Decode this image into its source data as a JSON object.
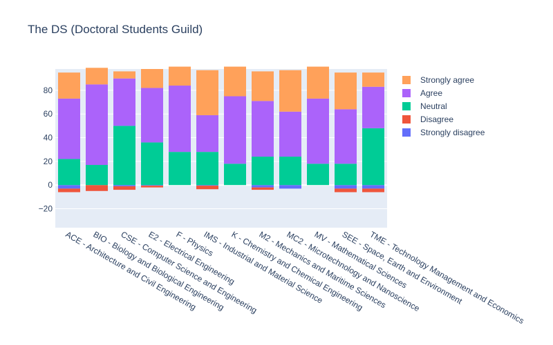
{
  "chart_data": {
    "type": "bar",
    "barmode": "relative",
    "title": "The DS (Doctoral Students Guild)",
    "categories": [
      "ACE - Architecture and Civil Engineering",
      "BIO - Biology and Biological Engineering",
      "CSE - Computer Science and Engineering",
      "E2 - Electrical Engineering",
      "F - Physics",
      "IMS - Industrial and Material Science",
      "K - Chemistry and Chemical Engineering",
      "M2 - Mechanics and Maritime Sciences",
      "MC2 - Microtechnology and Nanoscience",
      "MV - Mathematical Sciences",
      "SEE - Space, Earth and Environment",
      "TME - Technology Management and Economics"
    ],
    "series": [
      {
        "name": "Strongly disagree",
        "color": "#636efa",
        "values": [
          -3,
          0,
          -1,
          -0.5,
          0,
          -0.5,
          0,
          -2,
          -3,
          0,
          -3,
          -3
        ]
      },
      {
        "name": "Disagree",
        "color": "#ef553b",
        "values": [
          -3,
          -5,
          -3,
          -1.5,
          0,
          -3,
          0,
          -2,
          0,
          0,
          -3,
          -3
        ]
      },
      {
        "name": "Neutral",
        "color": "#00cc96",
        "values": [
          22,
          17,
          50,
          36,
          28,
          28,
          18,
          24,
          24,
          18,
          18,
          48
        ]
      },
      {
        "name": "Agree",
        "color": "#ab63fa",
        "values": [
          51,
          68,
          40,
          46,
          56,
          31,
          57,
          47,
          38,
          55,
          46,
          35
        ]
      },
      {
        "name": "Strongly agree",
        "color": "#ffa15a",
        "values": [
          22,
          14,
          6,
          16,
          16,
          38,
          25,
          25,
          35,
          27,
          31,
          12
        ]
      }
    ],
    "legend_order": [
      "Strongly agree",
      "Agree",
      "Neutral",
      "Disagree",
      "Strongly disagree"
    ],
    "ylim": [
      -36,
      98
    ],
    "yticks": [
      -20,
      0,
      20,
      40,
      60,
      80
    ],
    "xlabel": "",
    "ylabel": "",
    "grid": true,
    "legend_position": "right"
  }
}
